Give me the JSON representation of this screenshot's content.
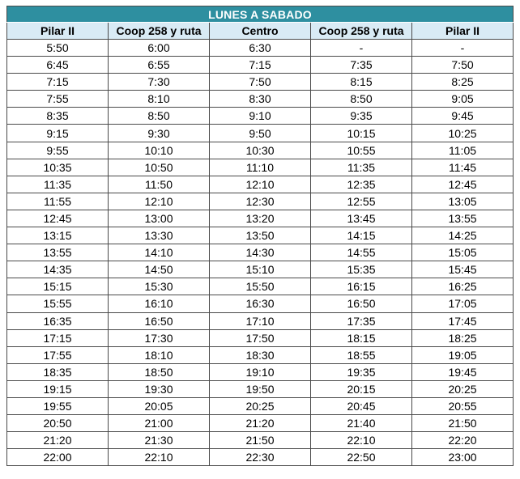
{
  "title": "LUNES A SABADO",
  "headers": [
    "Pilar II",
    "Coop 258 y ruta",
    "Centro",
    "Coop 258 y ruta",
    "Pilar II"
  ],
  "rows": [
    [
      "5:50",
      "6:00",
      "6:30",
      "-",
      "-"
    ],
    [
      "6:45",
      "6:55",
      "7:15",
      "7:35",
      "7:50"
    ],
    [
      "7:15",
      "7:30",
      "7:50",
      "8:15",
      "8:25"
    ],
    [
      "7:55",
      "8:10",
      "8:30",
      "8:50",
      "9:05"
    ],
    [
      "8:35",
      "8:50",
      "9:10",
      "9:35",
      "9:45"
    ],
    [
      "9:15",
      "9:30",
      "9:50",
      "10:15",
      "10:25"
    ],
    [
      "9:55",
      "10:10",
      "10:30",
      "10:55",
      "11:05"
    ],
    [
      "10:35",
      "10:50",
      "11:10",
      "11:35",
      "11:45"
    ],
    [
      "11:35",
      "11:50",
      "12:10",
      "12:35",
      "12:45"
    ],
    [
      "11:55",
      "12:10",
      "12:30",
      "12:55",
      "13:05"
    ],
    [
      "12:45",
      "13:00",
      "13:20",
      "13:45",
      "13:55"
    ],
    [
      "13:15",
      "13:30",
      "13:50",
      "14:15",
      "14:25"
    ],
    [
      "13:55",
      "14:10",
      "14:30",
      "14:55",
      "15:05"
    ],
    [
      "14:35",
      "14:50",
      "15:10",
      "15:35",
      "15:45"
    ],
    [
      "15:15",
      "15:30",
      "15:50",
      "16:15",
      "16:25"
    ],
    [
      "15:55",
      "16:10",
      "16:30",
      "16:50",
      "17:05"
    ],
    [
      "16:35",
      "16:50",
      "17:10",
      "17:35",
      "17:45"
    ],
    [
      "17:15",
      "17:30",
      "17:50",
      "18:15",
      "18:25"
    ],
    [
      "17:55",
      "18:10",
      "18:30",
      "18:55",
      "19:05"
    ],
    [
      "18:35",
      "18:50",
      "19:10",
      "19:35",
      "19:45"
    ],
    [
      "19:15",
      "19:30",
      "19:50",
      "20:15",
      "20:25"
    ],
    [
      "19:55",
      "20:05",
      "20:25",
      "20:45",
      "20:55"
    ],
    [
      "20:50",
      "21:00",
      "21:20",
      "21:40",
      "21:50"
    ],
    [
      "21:20",
      "21:30",
      "21:50",
      "22:10",
      "22:20"
    ],
    [
      "22:00",
      "22:10",
      "22:30",
      "22:50",
      "23:00"
    ]
  ],
  "colors": {
    "title_bg": "#2e8fa0",
    "header_bg": "#d9ebf5",
    "border": "#4a4a4a"
  }
}
